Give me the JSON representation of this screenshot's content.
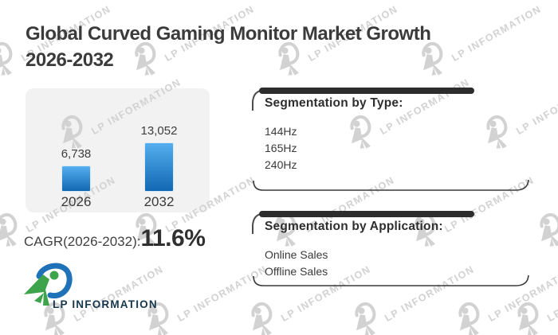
{
  "header": {
    "title_line1": "Global Curved Gaming Monitor Market Growth",
    "title_line2": "2026-2032"
  },
  "chart_data": {
    "type": "bar",
    "title": "Global Curved Gaming Monitor Market Growth 2026-2032",
    "categories": [
      "2026",
      "2032"
    ],
    "values": [
      6738,
      13052
    ],
    "value_labels": [
      "6,738",
      "13,052"
    ],
    "ylim": [
      0,
      13052
    ],
    "grid": false,
    "cagr_label": "CAGR(2026-2032):",
    "cagr_value": "11.6%",
    "bar_color_top": "#55aeef",
    "bar_color_bottom": "#1268b2"
  },
  "segmentation_type": {
    "title": "Segmentation by Type:",
    "items": [
      "144Hz",
      "165Hz",
      "240Hz"
    ]
  },
  "segmentation_application": {
    "title": "Segmentation by Application:",
    "items": [
      "Online Sales",
      "Offline Sales"
    ]
  },
  "branding": {
    "logo_text": "LP INFORMATION",
    "watermark_text": "LP INFORMATION"
  },
  "colors": {
    "title_text": "#3b3b3b",
    "card_background": "#f2f2f2",
    "segment_border": "#2d2d2d",
    "logo_green": "#3ea44b",
    "logo_blue": "#1f72b8",
    "logo_navy": "#15374e",
    "watermark_gray": "#d2d2d2"
  }
}
